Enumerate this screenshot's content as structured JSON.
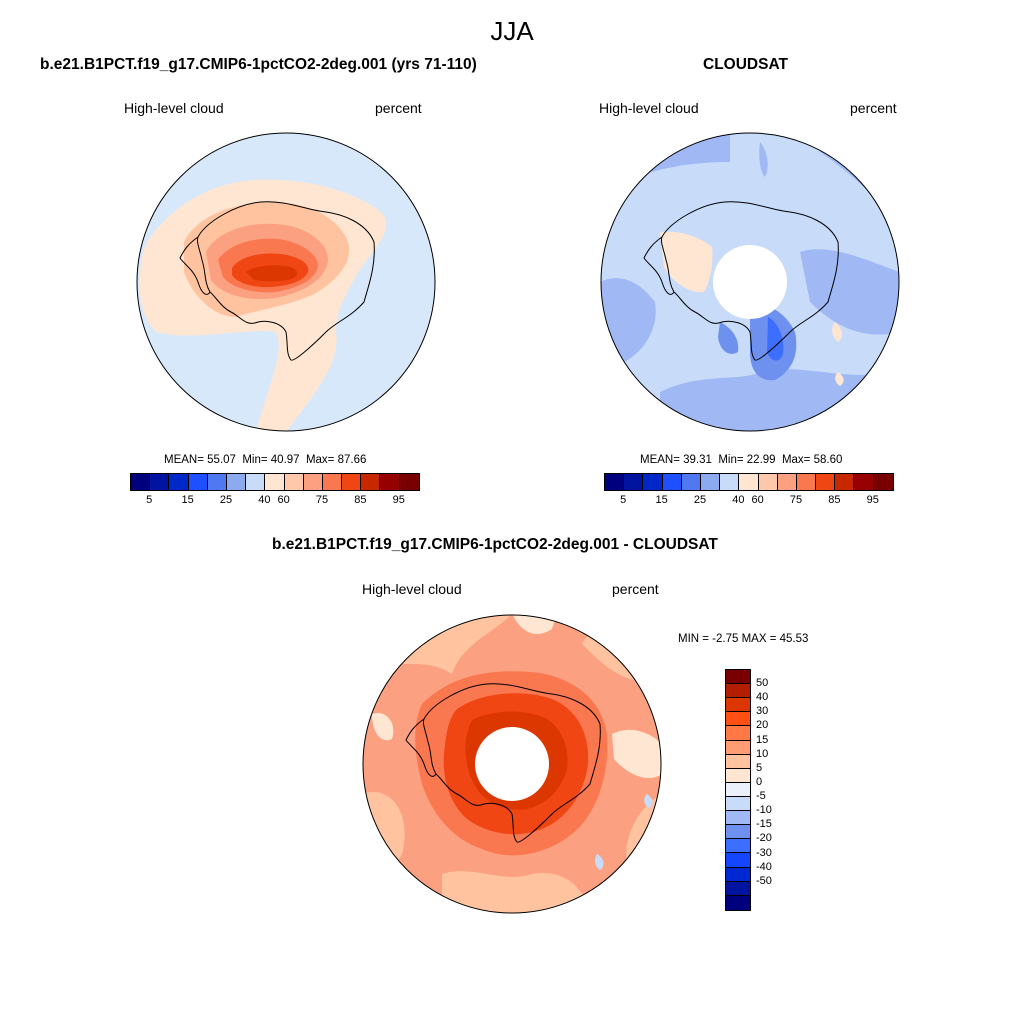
{
  "figure": {
    "title": "JJA"
  },
  "panels": {
    "model": {
      "title": "b.e21.B1PCT.f19_g17.CMIP6-1pctCO2-2deg.001 (yrs 71-110)",
      "left_label": "High-level cloud",
      "right_label": "percent",
      "stats": {
        "mean_label": "MEAN=",
        "mean": "55.07",
        "min_label": "Min=",
        "min": "40.97",
        "max_label": "Max=",
        "max": "87.66"
      }
    },
    "obs": {
      "title": "CLOUDSAT",
      "left_label": "High-level cloud",
      "right_label": "percent",
      "stats": {
        "mean_label": "MEAN=",
        "mean": "39.31",
        "min_label": "Min=",
        "min": "22.99",
        "max_label": "Max=",
        "max": "58.60"
      }
    },
    "diff": {
      "title": "b.e21.B1PCT.f19_g17.CMIP6-1pctCO2-2deg.001 - CLOUDSAT",
      "left_label": "High-level cloud",
      "right_label": "percent",
      "minmax": "MIN =  -2.75 MAX =  45.53"
    }
  },
  "colorbar_main": {
    "colors": [
      "#00007f",
      "#0014a0",
      "#0028c8",
      "#1e50ff",
      "#5078f0",
      "#8caaf0",
      "#c8dcfa",
      "#ffe6d2",
      "#ffc8aa",
      "#fca082",
      "#fa7850",
      "#f04614",
      "#c82800",
      "#960000",
      "#780000"
    ],
    "tick_labels": [
      "5",
      "15",
      "25",
      "40",
      "60",
      "75",
      "85",
      "95"
    ]
  },
  "colorbar_diff": {
    "colors": [
      "#780000",
      "#b41e00",
      "#dc3700",
      "#ff5014",
      "#ff7846",
      "#ff9c73",
      "#ffc3a0",
      "#ffe6d2",
      "#ebf0fa",
      "#c8dcfa",
      "#a0b9f5",
      "#6e91f0",
      "#3c6eff",
      "#1446ff",
      "#0028d2",
      "#0014a0",
      "#00007f"
    ],
    "tick_labels": [
      "50",
      "40",
      "30",
      "20",
      "15",
      "10",
      "5",
      "0",
      "-5",
      "-10",
      "-15",
      "-20",
      "-30",
      "-40",
      "-50"
    ]
  },
  "map_colors": {
    "ocean_light_blue": "#d8e8fb",
    "peach": "#ffe6d2",
    "salmon_light": "#ffc3a0",
    "salmon": "#fca082",
    "orange": "#fa7850",
    "orange_dark": "#f04614",
    "red": "#dc3700",
    "blue_light": "#c8dcfa",
    "blue_mid": "#a0b9f5",
    "blue": "#6e91f0",
    "blue_dark": "#3c6eff"
  }
}
